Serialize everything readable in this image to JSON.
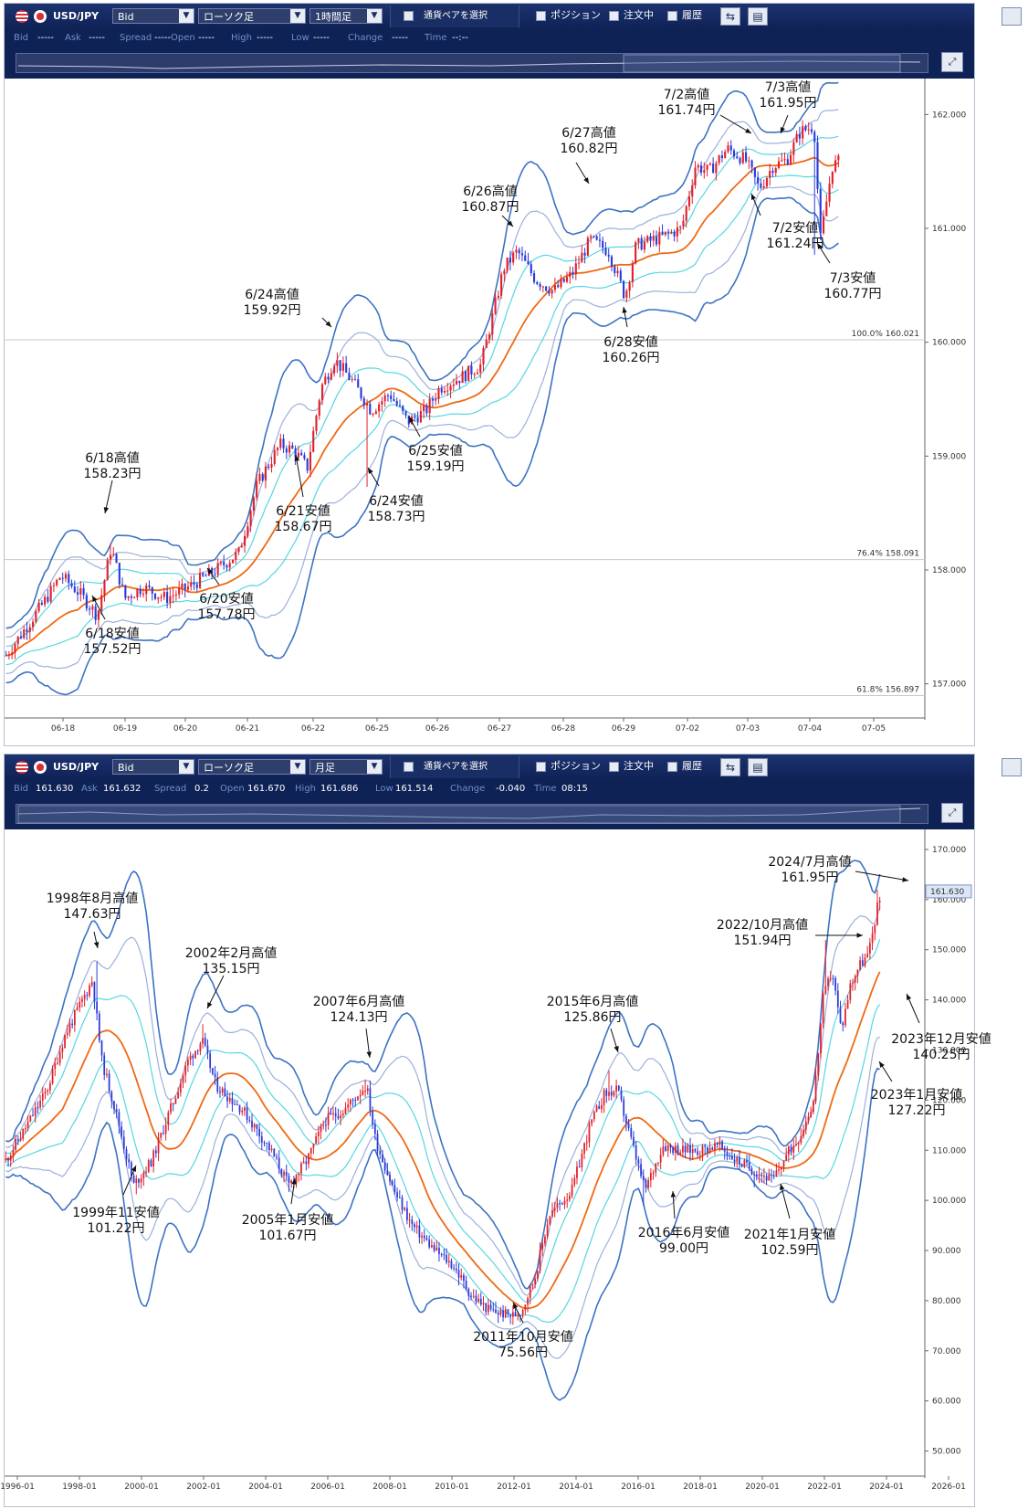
{
  "colors": {
    "toolbar": "#13286a",
    "band_outer": "#3c73c3",
    "band_mid": "#9bb0dc",
    "band_inner": "#56d6e2",
    "ma": "#ee6a14",
    "up": "#e0202c",
    "down": "#2a3bd8",
    "crosshair": "#c8c8c8"
  },
  "toolbar": {
    "symbol": "USD/JPY",
    "price_type": "Bid",
    "chart_type": "ローソク足",
    "select_pair": "通貨ペアを選択",
    "position": "ポジション",
    "orders": "注文中",
    "history": "履歴",
    "icons": [
      "chart-settings-icon",
      "layout-icon",
      "minimize-icon",
      "expand-icon"
    ]
  },
  "quote_labels": {
    "bid": "Bid",
    "ask": "Ask",
    "spread": "Spread",
    "open": "Open",
    "high": "High",
    "low": "Low",
    "change": "Change",
    "time": "Time"
  },
  "panels": [
    {
      "timeframe": "1時間足",
      "quote": {
        "bid": "-----",
        "ask": "-----",
        "spread": "-----",
        "open": "-----",
        "high": "-----",
        "low": "-----",
        "change": "-----",
        "time": "--:--"
      }
    },
    {
      "timeframe": "月足",
      "quote": {
        "bid": "161.630",
        "ask": "161.632",
        "spread": "0.2",
        "open": "161.670",
        "high": "161.686",
        "low": "161.514",
        "change": "-0.040",
        "time": "08:15"
      }
    }
  ],
  "chart_data": [
    {
      "type": "candlestick",
      "title": "",
      "timeframe": "1時間足",
      "ylim": [
        156.7,
        162.3
      ],
      "yticks": [
        "157.000",
        "158.000",
        "159.000",
        "160.000",
        "161.000",
        "162.000"
      ],
      "xticks": [
        "06-18",
        "06-19",
        "06-20",
        "06-21",
        "06-22",
        "06-25",
        "06-26",
        "06-27",
        "06-28",
        "06-29",
        "07-02",
        "07-03",
        "07-04",
        "07-05"
      ],
      "fibonacci": [
        {
          "label": "100.0%",
          "price": "160.021"
        },
        {
          "label": "76.4%",
          "price": "158.091"
        },
        {
          "label": "61.8%",
          "price": "156.897"
        }
      ],
      "anchors": [
        [
          0,
          157.25
        ],
        [
          40,
          157.7
        ],
        [
          60,
          157.95
        ],
        [
          80,
          157.8
        ],
        [
          100,
          157.6
        ],
        [
          115,
          158.2
        ],
        [
          130,
          157.75
        ],
        [
          150,
          157.85
        ],
        [
          175,
          157.75
        ],
        [
          200,
          157.85
        ],
        [
          230,
          158.0
        ],
        [
          255,
          158.15
        ],
        [
          275,
          158.75
        ],
        [
          300,
          159.1
        ],
        [
          315,
          159.05
        ],
        [
          330,
          158.9
        ],
        [
          345,
          159.6
        ],
        [
          360,
          159.85
        ],
        [
          380,
          159.65
        ],
        [
          400,
          159.4
        ],
        [
          420,
          159.55
        ],
        [
          440,
          159.3
        ],
        [
          460,
          159.4
        ],
        [
          475,
          159.6
        ],
        [
          500,
          159.7
        ],
        [
          520,
          159.8
        ],
        [
          535,
          160.3
        ],
        [
          545,
          160.65
        ],
        [
          560,
          160.8
        ],
        [
          580,
          160.55
        ],
        [
          600,
          160.45
        ],
        [
          620,
          160.6
        ],
        [
          640,
          160.9
        ],
        [
          660,
          160.8
        ],
        [
          678,
          160.4
        ],
        [
          690,
          160.85
        ],
        [
          710,
          160.9
        ],
        [
          740,
          161.0
        ],
        [
          755,
          161.55
        ],
        [
          770,
          161.5
        ],
        [
          790,
          161.7
        ],
        [
          810,
          161.6
        ],
        [
          825,
          161.35
        ],
        [
          840,
          161.55
        ],
        [
          855,
          161.6
        ],
        [
          870,
          161.85
        ],
        [
          885,
          161.9
        ],
        [
          892,
          160.9
        ],
        [
          905,
          161.55
        ],
        [
          915,
          161.6
        ]
      ],
      "bands": {
        "ma_period": 25,
        "sigma": [
          1,
          2,
          3
        ]
      },
      "annotations": [
        {
          "line1": "6/18高値",
          "line2": "158.23円",
          "date_index": 0.11,
          "price": 158.23
        },
        {
          "line1": "6/18安値",
          "line2": "157.52円",
          "date_index": 0.095,
          "price": 157.52
        },
        {
          "line1": "6/20安値",
          "line2": "157.78円",
          "date_index": 0.225,
          "price": 157.78
        },
        {
          "line1": "6/21安値",
          "line2": "158.67円",
          "date_index": 0.32,
          "price": 158.67
        },
        {
          "line1": "6/24高値",
          "line2": "159.92円",
          "date_index": 0.36,
          "price": 159.92
        },
        {
          "line1": "6/24安値",
          "line2": "158.73円",
          "date_index": 0.395,
          "price": 158.73
        },
        {
          "line1": "6/25安値",
          "line2": "159.19円",
          "date_index": 0.44,
          "price": 159.19
        },
        {
          "line1": "6/26高値",
          "line2": "160.87円",
          "date_index": 0.555,
          "price": 160.87
        },
        {
          "line1": "6/27高値",
          "line2": "160.82円",
          "date_index": 0.64,
          "price": 160.82
        },
        {
          "line1": "6/28安値",
          "line2": "160.26円",
          "date_index": 0.68,
          "price": 160.26
        },
        {
          "line1": "7/2高値",
          "line2": "161.74円",
          "date_index": 0.79,
          "price": 161.74
        },
        {
          "line1": "7/2安値",
          "line2": "161.24円",
          "date_index": 0.815,
          "price": 161.24
        },
        {
          "line1": "7/3高値",
          "line2": "161.95円",
          "date_index": 0.875,
          "price": 161.95
        },
        {
          "line1": "7/3安値",
          "line2": "160.77円",
          "date_index": 0.885,
          "price": 160.77
        }
      ]
    },
    {
      "type": "candlestick",
      "title": "",
      "timeframe": "月足",
      "ylim": [
        45,
        174
      ],
      "yticks": [
        "50.000",
        "60.000",
        "70.000",
        "80.000",
        "90.000",
        "100.000",
        "110.000",
        "120.000",
        "130.000",
        "140.000",
        "150.000",
        "160.000",
        "170.000"
      ],
      "xticks": [
        "1996-01",
        "1998-01",
        "2000-01",
        "2002-01",
        "2004-01",
        "2006-01",
        "2008-01",
        "2010-01",
        "2012-01",
        "2014-01",
        "2016-01",
        "2018-01",
        "2020-01",
        "2022-01",
        "2024-01",
        "2026-01"
      ],
      "current_price": "161.630",
      "anchors": [
        [
          0,
          108
        ],
        [
          20,
          114
        ],
        [
          45,
          122
        ],
        [
          65,
          133
        ],
        [
          95,
          144
        ],
        [
          105,
          128
        ],
        [
          120,
          118
        ],
        [
          140,
          103
        ],
        [
          160,
          108
        ],
        [
          180,
          118
        ],
        [
          200,
          128
        ],
        [
          215,
          132
        ],
        [
          230,
          123
        ],
        [
          260,
          118
        ],
        [
          290,
          110
        ],
        [
          310,
          103
        ],
        [
          330,
          108
        ],
        [
          350,
          116
        ],
        [
          370,
          118
        ],
        [
          385,
          121
        ],
        [
          395,
          123
        ],
        [
          405,
          112
        ],
        [
          425,
          102
        ],
        [
          445,
          95
        ],
        [
          470,
          90
        ],
        [
          490,
          87
        ],
        [
          510,
          81
        ],
        [
          530,
          78
        ],
        [
          555,
          77
        ],
        [
          565,
          78
        ],
        [
          580,
          85
        ],
        [
          595,
          97
        ],
        [
          620,
          102
        ],
        [
          640,
          115
        ],
        [
          655,
          121
        ],
        [
          670,
          122
        ],
        [
          685,
          112
        ],
        [
          700,
          102
        ],
        [
          720,
          111
        ],
        [
          740,
          110
        ],
        [
          760,
          110
        ],
        [
          780,
          111
        ],
        [
          800,
          108
        ],
        [
          820,
          106
        ],
        [
          840,
          104
        ],
        [
          855,
          109
        ],
        [
          870,
          113
        ],
        [
          885,
          120
        ],
        [
          895,
          140
        ],
        [
          905,
          146
        ],
        [
          915,
          134
        ],
        [
          925,
          143
        ],
        [
          935,
          147
        ],
        [
          945,
          149
        ],
        [
          955,
          159
        ],
        [
          960,
          161
        ]
      ],
      "bands": {
        "ma_period": 24,
        "sigma": [
          1,
          2,
          3
        ]
      },
      "annotations": [
        {
          "line1": "1998年8月高値",
          "line2": "147.63円",
          "price": 147.63
        },
        {
          "line1": "1999年11安値",
          "line2": "101.22円",
          "price": 101.22
        },
        {
          "line1": "2002年2月高値",
          "line2": "135.15円",
          "price": 135.15
        },
        {
          "line1": "2005年1月安値",
          "line2": "101.67円",
          "price": 101.67
        },
        {
          "line1": "2007年6月高値",
          "line2": "124.13円",
          "price": 124.13
        },
        {
          "line1": "2011年10月安値",
          "line2": "75.56円",
          "price": 75.56
        },
        {
          "line1": "2015年6月高値",
          "line2": "125.86円",
          "price": 125.86
        },
        {
          "line1": "2016年6月安値",
          "line2": "99.00円",
          "price": 99.0
        },
        {
          "line1": "2021年1月安値",
          "line2": "102.59円",
          "price": 102.59
        },
        {
          "line1": "2022/10月高値",
          "line2": "151.94円",
          "price": 151.94
        },
        {
          "line1": "2024/7月高値",
          "line2": "161.95円",
          "price": 161.95
        },
        {
          "line1": "2023年12月安値",
          "line2": "140.25円",
          "price": 140.25
        },
        {
          "line1": "2023年1月安値",
          "line2": "127.22円",
          "price": 127.22
        }
      ]
    }
  ]
}
